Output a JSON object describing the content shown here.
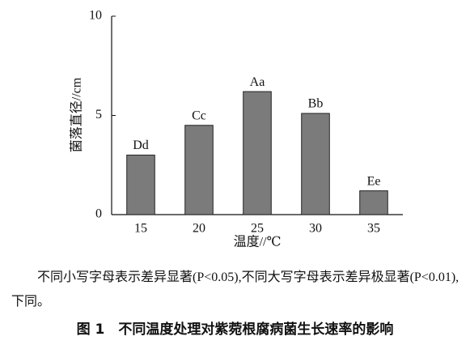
{
  "chart_data": {
    "type": "bar",
    "categories": [
      "15",
      "20",
      "25",
      "30",
      "35"
    ],
    "values": [
      3.0,
      4.5,
      6.2,
      5.1,
      1.2
    ],
    "annotations": [
      "Dd",
      "Cc",
      "Aa",
      "Bb",
      "Ee"
    ],
    "color": "#7b7b7b",
    "ylim": [
      0,
      10
    ],
    "yticks": [
      0,
      5,
      10
    ],
    "y_label": "菌落直径//cm",
    "x_label": "温度//℃",
    "grid": false
  },
  "note": "不同小写字母表示差异显著(P<0.05),不同大写字母表示差异极显著(P<0.01),下同。",
  "caption": "图 1　不同温度处理对紫菀根腐病菌生长速率的影响"
}
